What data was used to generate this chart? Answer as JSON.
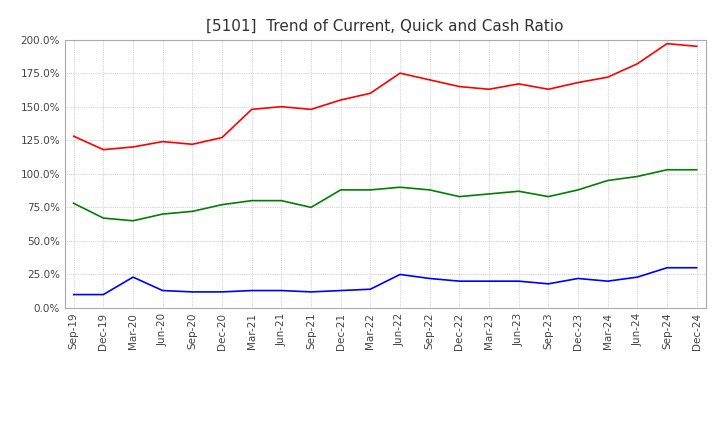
{
  "title": "[5101]  Trend of Current, Quick and Cash Ratio",
  "x_labels": [
    "Sep-19",
    "Dec-19",
    "Mar-20",
    "Jun-20",
    "Sep-20",
    "Dec-20",
    "Mar-21",
    "Jun-21",
    "Sep-21",
    "Dec-21",
    "Mar-22",
    "Jun-22",
    "Sep-22",
    "Dec-22",
    "Mar-23",
    "Jun-23",
    "Sep-23",
    "Dec-23",
    "Mar-24",
    "Jun-24",
    "Sep-24",
    "Dec-24"
  ],
  "current_ratio": [
    128.0,
    118.0,
    120.0,
    124.0,
    122.0,
    127.0,
    148.0,
    150.0,
    148.0,
    155.0,
    160.0,
    175.0,
    170.0,
    165.0,
    163.0,
    167.0,
    163.0,
    168.0,
    172.0,
    182.0,
    197.0,
    195.0
  ],
  "quick_ratio": [
    78.0,
    67.0,
    65.0,
    70.0,
    72.0,
    77.0,
    80.0,
    80.0,
    75.0,
    88.0,
    88.0,
    90.0,
    88.0,
    83.0,
    85.0,
    87.0,
    83.0,
    88.0,
    95.0,
    98.0,
    103.0,
    103.0
  ],
  "cash_ratio": [
    10.0,
    10.0,
    23.0,
    13.0,
    12.0,
    12.0,
    13.0,
    13.0,
    12.0,
    13.0,
    14.0,
    25.0,
    22.0,
    20.0,
    20.0,
    20.0,
    18.0,
    22.0,
    20.0,
    23.0,
    30.0,
    30.0
  ],
  "current_color": "#FF0000",
  "quick_color": "#008000",
  "cash_color": "#0000FF",
  "ylim": [
    0.0,
    200.0
  ],
  "yticks": [
    0.0,
    25.0,
    50.0,
    75.0,
    100.0,
    125.0,
    150.0,
    175.0,
    200.0
  ],
  "background_color": "#FFFFFF",
  "plot_bg_color": "#FFFFFF",
  "grid_color": "#AAAAAA",
  "title_fontsize": 11,
  "axis_fontsize": 7.5,
  "legend_fontsize": 8.5
}
